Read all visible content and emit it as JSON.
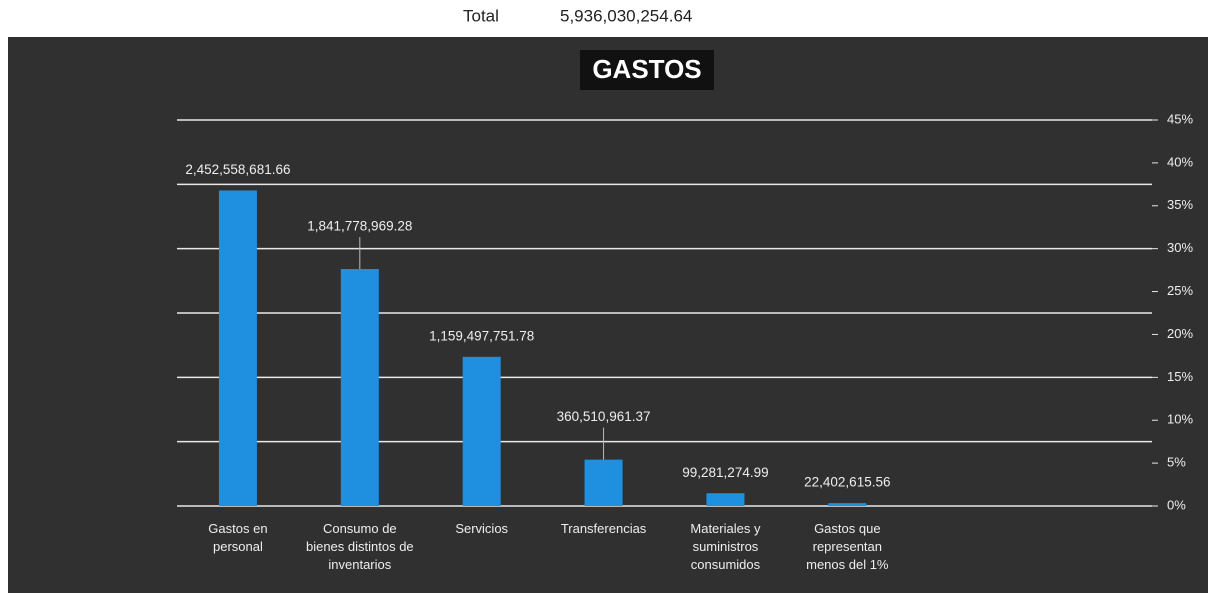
{
  "total": {
    "label": "Total",
    "value": "5,936,030,254.64"
  },
  "chart_data": {
    "type": "bar",
    "title": "GASTOS",
    "categories": [
      "Gastos en personal",
      "Consumo de bienes distintos de inventarios",
      "Servicios",
      "Transferencias",
      "Materiales y suministros consumidos",
      "Gastos que representan menos del 1%",
      null,
      null
    ],
    "values": [
      2452558681.66,
      1841778969.28,
      1159497751.78,
      360510961.37,
      99281274.99,
      22402615.56,
      null,
      null
    ],
    "value_labels": [
      "2,452,558,681.66",
      "1,841,778,969.28",
      "1,159,497,751.78",
      "360,510,961.37",
      "99,281,274.99",
      "22,402,615.56",
      null,
      null
    ],
    "color": "#1f8fe0",
    "ylim": [
      0,
      3000000000
    ],
    "yticks": [
      0,
      500000000,
      1000000000,
      1500000000,
      2000000000,
      2500000000,
      3000000000
    ],
    "y2lim": [
      0,
      45
    ],
    "y2ticks": [
      {
        "value": 0,
        "label": "0%"
      },
      {
        "value": 5,
        "label": "5%"
      },
      {
        "value": 10,
        "label": "10%"
      },
      {
        "value": 15,
        "label": "15%"
      },
      {
        "value": 20,
        "label": "20%"
      },
      {
        "value": 25,
        "label": "25%"
      },
      {
        "value": 30,
        "label": "30%"
      },
      {
        "value": 35,
        "label": "35%"
      },
      {
        "value": 40,
        "label": "40%"
      },
      {
        "value": 45,
        "label": "45%"
      }
    ],
    "grid": true
  }
}
